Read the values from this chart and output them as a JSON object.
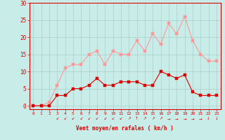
{
  "x": [
    0,
    1,
    2,
    3,
    4,
    5,
    6,
    7,
    8,
    9,
    10,
    11,
    12,
    13,
    14,
    15,
    16,
    17,
    18,
    19,
    20,
    21,
    22,
    23
  ],
  "wind_avg": [
    0,
    0,
    0,
    3,
    3,
    5,
    5,
    6,
    8,
    6,
    6,
    7,
    7,
    7,
    6,
    6,
    10,
    9,
    8,
    9,
    4,
    3,
    3,
    3
  ],
  "wind_gust": [
    0,
    0,
    1,
    6,
    11,
    12,
    12,
    15,
    16,
    12,
    16,
    15,
    15,
    19,
    16,
    21,
    18,
    24,
    21,
    26,
    19,
    15,
    13,
    13
  ],
  "bg_color": "#c8ece8",
  "grid_color": "#aacccc",
  "line_avg_color": "#dd0000",
  "line_gust_color": "#ff9999",
  "xlabel": "Vent moyen/en rafales ( km/h )",
  "ylabel_ticks": [
    0,
    5,
    10,
    15,
    20,
    25,
    30
  ],
  "xlim": [
    -0.5,
    23.5
  ],
  "ylim": [
    -1,
    30
  ],
  "arrow_symbols": [
    " ",
    " ",
    " ",
    "↙",
    "↙",
    "↙",
    "↙",
    "↙",
    "↙",
    "↙",
    "↙",
    "↙",
    "↗",
    "↑",
    "↗",
    "↗",
    "↗",
    "→",
    "→",
    "→",
    "→",
    "→",
    "↓",
    "↓"
  ]
}
